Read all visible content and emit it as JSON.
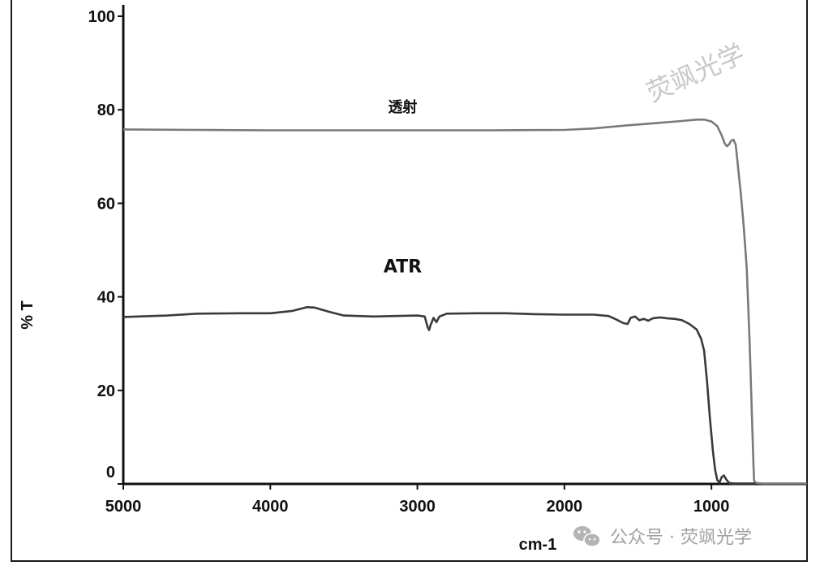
{
  "chart_data": {
    "type": "line",
    "xlabel": "cm-1",
    "ylabel": "% T",
    "xlim": [
      5000,
      350
    ],
    "ylim": [
      0,
      100
    ],
    "x_ticks": [
      5000,
      4000,
      3000,
      2000,
      1000
    ],
    "y_ticks": [
      0,
      20,
      40,
      60,
      80,
      100
    ],
    "grid": false,
    "series": [
      {
        "name": "透射",
        "color": "#7a7a7a",
        "points": [
          [
            5000,
            75.8
          ],
          [
            4500,
            75.7
          ],
          [
            4000,
            75.6
          ],
          [
            3500,
            75.6
          ],
          [
            3000,
            75.6
          ],
          [
            2500,
            75.6
          ],
          [
            2000,
            75.7
          ],
          [
            1800,
            76.0
          ],
          [
            1600,
            76.6
          ],
          [
            1400,
            77.1
          ],
          [
            1200,
            77.6
          ],
          [
            1100,
            77.9
          ],
          [
            1050,
            77.9
          ],
          [
            1000,
            77.5
          ],
          [
            960,
            76.5
          ],
          [
            930,
            74.5
          ],
          [
            910,
            72.8
          ],
          [
            895,
            72.2
          ],
          [
            880,
            72.6
          ],
          [
            865,
            73.4
          ],
          [
            850,
            73.6
          ],
          [
            835,
            72.5
          ],
          [
            820,
            68.0
          ],
          [
            800,
            62.0
          ],
          [
            780,
            55.0
          ],
          [
            760,
            46.0
          ],
          [
            740,
            30.0
          ],
          [
            725,
            15.0
          ],
          [
            715,
            5.0
          ],
          [
            710,
            0.8
          ],
          [
            700,
            0.2
          ],
          [
            650,
            0.1
          ],
          [
            600,
            0.1
          ],
          [
            500,
            0.1
          ],
          [
            400,
            0.1
          ],
          [
            350,
            0.1
          ]
        ]
      },
      {
        "name": "ATR",
        "color": "#3a3a3a",
        "points": [
          [
            5000,
            35.7
          ],
          [
            4700,
            36.0
          ],
          [
            4500,
            36.4
          ],
          [
            4200,
            36.5
          ],
          [
            4000,
            36.5
          ],
          [
            3850,
            37.0
          ],
          [
            3750,
            37.8
          ],
          [
            3700,
            37.7
          ],
          [
            3600,
            36.8
          ],
          [
            3500,
            36.0
          ],
          [
            3300,
            35.8
          ],
          [
            3000,
            36.0
          ],
          [
            2950,
            35.8
          ],
          [
            2930,
            33.5
          ],
          [
            2920,
            32.9
          ],
          [
            2910,
            34.0
          ],
          [
            2890,
            35.5
          ],
          [
            2870,
            34.6
          ],
          [
            2850,
            35.8
          ],
          [
            2800,
            36.4
          ],
          [
            2600,
            36.5
          ],
          [
            2400,
            36.5
          ],
          [
            2200,
            36.3
          ],
          [
            2000,
            36.2
          ],
          [
            1800,
            36.2
          ],
          [
            1700,
            35.9
          ],
          [
            1650,
            35.2
          ],
          [
            1600,
            34.4
          ],
          [
            1570,
            34.2
          ],
          [
            1550,
            35.5
          ],
          [
            1520,
            35.8
          ],
          [
            1490,
            35.0
          ],
          [
            1460,
            35.3
          ],
          [
            1430,
            34.9
          ],
          [
            1400,
            35.4
          ],
          [
            1350,
            35.6
          ],
          [
            1300,
            35.4
          ],
          [
            1250,
            35.3
          ],
          [
            1200,
            35.0
          ],
          [
            1150,
            34.2
          ],
          [
            1100,
            33.0
          ],
          [
            1070,
            31.0
          ],
          [
            1050,
            28.5
          ],
          [
            1030,
            22.0
          ],
          [
            1010,
            14.0
          ],
          [
            990,
            7.0
          ],
          [
            975,
            3.0
          ],
          [
            960,
            0.8
          ],
          [
            945,
            0.3
          ],
          [
            930,
            1.5
          ],
          [
            915,
            1.8
          ],
          [
            900,
            1.0
          ],
          [
            880,
            0.2
          ],
          [
            850,
            0.1
          ],
          [
            800,
            0.1
          ],
          [
            750,
            0.1
          ],
          [
            700,
            0.1
          ]
        ]
      }
    ]
  },
  "watermark": "荧飒光学",
  "footer": {
    "account": "公众号 · 荧飒光学",
    "wechat_icon": "wechat-icon"
  }
}
